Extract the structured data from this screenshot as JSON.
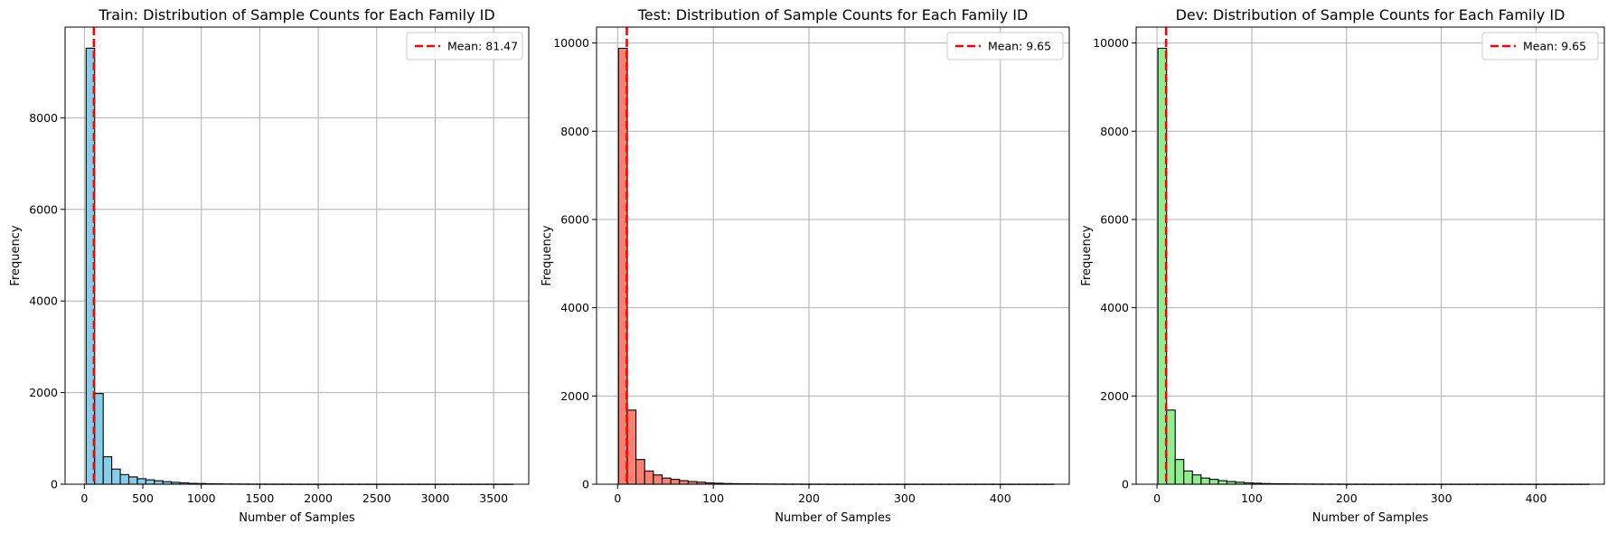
{
  "figure": {
    "background": "#ffffff"
  },
  "chart_data": [
    {
      "type": "bar",
      "subtype": "histogram",
      "title": "Train: Distribution of Sample Counts for Each Family ID",
      "xlabel": "Number of Samples",
      "ylabel": "Frequency",
      "color": "#87ceeb",
      "edge_color": "#000000",
      "xlim": [
        -165,
        3800
      ],
      "ylim": [
        0,
        9980
      ],
      "xticks": [
        0,
        500,
        1000,
        1500,
        2000,
        2500,
        3000,
        3500
      ],
      "yticks": [
        0,
        2000,
        4000,
        6000,
        8000
      ],
      "grid": true,
      "bin_start": 15,
      "bin_width": 73,
      "values": [
        9520,
        1980,
        600,
        330,
        210,
        160,
        120,
        95,
        75,
        55,
        40,
        30,
        18,
        15,
        10,
        8,
        6,
        5,
        4,
        3,
        3,
        2,
        2,
        2,
        1,
        1,
        1,
        1,
        1,
        1,
        1,
        1,
        1,
        1,
        1,
        1,
        1,
        1,
        1,
        1,
        1,
        1,
        1,
        1,
        1,
        1,
        1,
        1,
        1,
        1
      ],
      "mean_line": {
        "value": 81.47,
        "label": "Mean: 81.47",
        "color": "#ff0000"
      },
      "legend_position": "upper right"
    },
    {
      "type": "bar",
      "subtype": "histogram",
      "title": "Test: Distribution of Sample Counts for Each Family ID",
      "xlabel": "Number of Samples",
      "ylabel": "Frequency",
      "color": "#fa8072",
      "edge_color": "#000000",
      "xlim": [
        -22,
        472
      ],
      "ylim": [
        0,
        10360
      ],
      "xticks": [
        0,
        100,
        200,
        300,
        400
      ],
      "yticks": [
        0,
        2000,
        4000,
        6000,
        8000,
        10000
      ],
      "grid": true,
      "bin_start": 1,
      "bin_width": 9.1,
      "values": [
        9880,
        1680,
        560,
        300,
        210,
        140,
        110,
        80,
        60,
        45,
        30,
        22,
        15,
        12,
        10,
        8,
        6,
        5,
        4,
        3,
        3,
        2,
        2,
        2,
        1,
        1,
        1,
        1,
        1,
        1,
        1,
        1,
        1,
        1,
        1,
        1,
        1,
        1,
        1,
        1,
        1,
        1,
        1,
        1,
        1,
        1,
        1,
        1,
        1,
        1
      ],
      "mean_line": {
        "value": 9.65,
        "label": "Mean: 9.65",
        "color": "#ff0000"
      },
      "legend_position": "upper right"
    },
    {
      "type": "bar",
      "subtype": "histogram",
      "title": "Dev: Distribution of Sample Counts for Each Family ID",
      "xlabel": "Number of Samples",
      "ylabel": "Frequency",
      "color": "#90ee90",
      "edge_color": "#000000",
      "xlim": [
        -22,
        472
      ],
      "ylim": [
        0,
        10360
      ],
      "xticks": [
        0,
        100,
        200,
        300,
        400
      ],
      "yticks": [
        0,
        2000,
        4000,
        6000,
        8000,
        10000
      ],
      "grid": true,
      "bin_start": 1,
      "bin_width": 9.1,
      "values": [
        9880,
        1680,
        560,
        300,
        210,
        140,
        110,
        80,
        60,
        45,
        30,
        22,
        15,
        12,
        10,
        8,
        6,
        5,
        4,
        3,
        3,
        2,
        2,
        2,
        1,
        1,
        1,
        1,
        1,
        1,
        1,
        1,
        1,
        1,
        1,
        1,
        1,
        1,
        1,
        1,
        1,
        1,
        1,
        1,
        1,
        1,
        1,
        1,
        1,
        1
      ],
      "mean_line": {
        "value": 9.65,
        "label": "Mean: 9.65",
        "color": "#ff0000"
      },
      "legend_position": "upper right"
    }
  ]
}
